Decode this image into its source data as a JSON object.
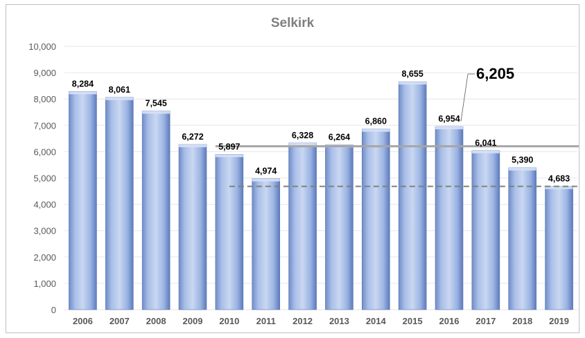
{
  "chart_data": {
    "type": "bar",
    "title": "Selkirk",
    "xlabel": "",
    "ylabel": "",
    "ylim": [
      0,
      10000
    ],
    "yticks": [
      "0",
      "1,000",
      "2,000",
      "3,000",
      "4,000",
      "5,000",
      "6,000",
      "7,000",
      "8,000",
      "9,000",
      "10,000"
    ],
    "grid": true,
    "legend": "none",
    "categories": [
      "2006",
      "2007",
      "2008",
      "2009",
      "2010",
      "2011",
      "2012",
      "2013",
      "2014",
      "2015",
      "2016",
      "2017",
      "2018",
      "2019"
    ],
    "values": [
      8284,
      8061,
      7545,
      6272,
      5897,
      4974,
      6328,
      6264,
      6860,
      8655,
      6954,
      6041,
      5390,
      4683
    ],
    "value_labels": [
      "8,284",
      "8,061",
      "7,545",
      "6,272",
      "5,897",
      "4,974",
      "6,328",
      "6,264",
      "6,860",
      "8,655",
      "6,954",
      "6,041",
      "5,390",
      "4,683"
    ],
    "reference_lines": [
      {
        "style": "solid",
        "color": "#a6a6a6",
        "value": 6205,
        "from": "2010",
        "to": "2019"
      },
      {
        "style": "dashed",
        "color": "#7f7f7f",
        "value": 4683,
        "from": "2010",
        "to": "2019"
      }
    ],
    "callout": {
      "text": "6,205",
      "points_to": "2016"
    },
    "colors": {
      "bar": "#8ea9db",
      "bar_light": "#c9d7f1",
      "bar_dark": "#6f8cc7",
      "grid": "#e6e6e6",
      "text": "#595959"
    }
  }
}
